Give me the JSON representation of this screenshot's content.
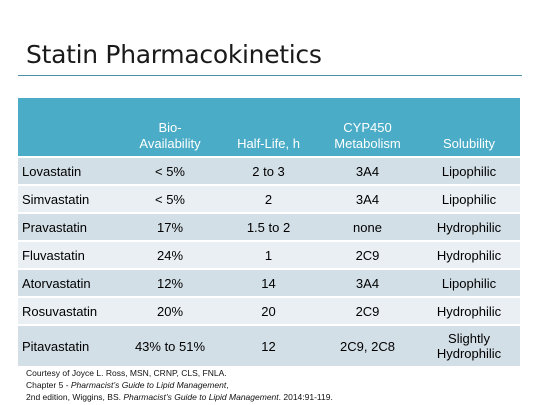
{
  "slide": {
    "title": "Statin Pharmacokinetics"
  },
  "table": {
    "headers": [
      "",
      "Bio-\nAvailability",
      "Half-Life, h",
      "CYP450\nMetabolism",
      "Solubility"
    ],
    "rows": [
      [
        "Lovastatin",
        "< 5%",
        "2 to 3",
        "3A4",
        "Lipophilic"
      ],
      [
        "Simvastatin",
        "< 5%",
        "2",
        "3A4",
        "Lipophilic"
      ],
      [
        "Pravastatin",
        "17%",
        "1.5 to 2",
        "none",
        "Hydrophilic"
      ],
      [
        "Fluvastatin",
        "24%",
        "1",
        "2C9",
        "Hydrophilic"
      ],
      [
        "Atorvastatin",
        "12%",
        "14",
        "3A4",
        "Lipophilic"
      ],
      [
        "Rosuvastatin",
        "20%",
        "20",
        "2C9",
        "Hydrophilic"
      ],
      [
        "Pitavastatin",
        "43% to 51%",
        "12",
        "2C9, 2C8",
        "Slightly\nHydrophilic"
      ]
    ]
  },
  "footnote": {
    "line1": "Courtesy of Joyce L. Ross, MSN, CRNP, CLS, FNLA.",
    "line2_prefix": "Chapter 5 - ",
    "line2_italic": "Pharmacist’s Guide to Lipid Management",
    "line2_suffix": ",",
    "line3_prefix": "2nd edition,  Wiggins, BS. ",
    "line3_italic": "Pharmacist’s Guide to Lipid Management",
    "line3_suffix": ". 2014:91-119."
  }
}
